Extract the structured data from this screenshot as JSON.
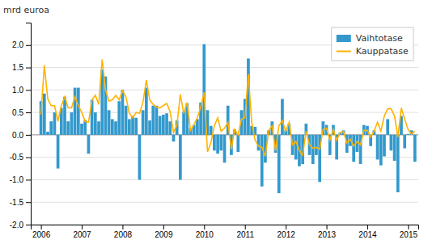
{
  "chart_data": {
    "type": "bar",
    "ylabel": "mrd euroa",
    "x": [
      2006,
      2006.083333,
      2006.166667,
      2006.25,
      2006.333333,
      2006.416667,
      2006.5,
      2006.583333,
      2006.666667,
      2006.75,
      2006.833333,
      2006.916667,
      2007,
      2007.083333,
      2007.166667,
      2007.25,
      2007.333333,
      2007.416667,
      2007.5,
      2007.583333,
      2007.666667,
      2007.75,
      2007.833333,
      2007.916667,
      2008,
      2008.083333,
      2008.166667,
      2008.25,
      2008.333333,
      2008.416667,
      2008.5,
      2008.583333,
      2008.666667,
      2008.75,
      2008.833333,
      2008.916667,
      2009,
      2009.083333,
      2009.166667,
      2009.25,
      2009.333333,
      2009.416667,
      2009.5,
      2009.583333,
      2009.666667,
      2009.75,
      2009.833333,
      2009.916667,
      2010,
      2010.083333,
      2010.166667,
      2010.25,
      2010.333333,
      2010.416667,
      2010.5,
      2010.583333,
      2010.666667,
      2010.75,
      2010.833333,
      2010.916667,
      2011,
      2011.083333,
      2011.166667,
      2011.25,
      2011.333333,
      2011.416667,
      2011.5,
      2011.583333,
      2011.666667,
      2011.75,
      2011.833333,
      2011.916667,
      2012,
      2012.083333,
      2012.166667,
      2012.25,
      2012.333333,
      2012.416667,
      2012.5,
      2012.583333,
      2012.666667,
      2012.75,
      2012.833333,
      2012.916667,
      2013,
      2013.083333,
      2013.166667,
      2013.25,
      2013.333333,
      2013.416667,
      2013.5,
      2013.583333,
      2013.666667,
      2013.75,
      2013.833333,
      2013.916667,
      2014,
      2014.083333,
      2014.166667,
      2014.25,
      2014.333333,
      2014.416667,
      2014.5,
      2014.583333,
      2014.666667,
      2014.75,
      2014.833333,
      2014.916667,
      2015,
      2015.083333,
      2015.166667
    ],
    "xlim": [
      2005.75,
      2015.25
    ],
    "xticks": [
      2006,
      2007,
      2008,
      2009,
      2010,
      2011,
      2012,
      2013,
      2014,
      2015
    ],
    "ylim": [
      -2.0,
      2.5
    ],
    "yticks": [
      {
        "value": -2.0,
        "label": "-2.0"
      },
      {
        "value": -1.5,
        "label": "-1.5"
      },
      {
        "value": -1.0,
        "label": "-1.0"
      },
      {
        "value": -0.5,
        "label": "-0.5"
      },
      {
        "value": 0.0,
        "label": "0.0"
      },
      {
        "value": 0.5,
        "label": "0.5"
      },
      {
        "value": 1.0,
        "label": "1.0"
      },
      {
        "value": 1.5,
        "label": "1.5"
      },
      {
        "value": 2.0,
        "label": "2.0"
      }
    ],
    "grid": true,
    "legend": "upper right",
    "series": [
      {
        "name": "Vaihtotase",
        "type": "bar",
        "color": "#3399CC",
        "values": [
          0.75,
          0.92,
          0.07,
          0.3,
          0.5,
          -0.75,
          0.6,
          0.85,
          0.3,
          0.5,
          1.05,
          1.05,
          0.25,
          0.33,
          -0.42,
          0.78,
          0.5,
          0.3,
          1.45,
          1.3,
          0.55,
          0.35,
          0.3,
          0.75,
          1.0,
          0.65,
          0.35,
          0.42,
          0.38,
          -1.0,
          0.55,
          1.05,
          0.32,
          0.65,
          0.65,
          0.42,
          0.45,
          0.48,
          0.3,
          -0.15,
          0.32,
          -1.0,
          0.52,
          0.7,
          0.15,
          0.22,
          0.35,
          0.72,
          2.02,
          0.55,
          0.2,
          -0.35,
          -0.42,
          -0.35,
          -0.62,
          0.65,
          -0.45,
          0.12,
          -0.38,
          0.55,
          0.8,
          1.7,
          0.2,
          0.18,
          -0.35,
          -1.15,
          -0.62,
          0.1,
          0.3,
          -0.4,
          -1.3,
          0.8,
          0.1,
          0.25,
          -0.45,
          -0.55,
          -0.7,
          -0.65,
          0.25,
          -0.45,
          -0.65,
          -0.45,
          -1.05,
          0.3,
          0.22,
          -0.45,
          0.22,
          -0.55,
          0.05,
          0.1,
          -0.4,
          -0.25,
          -0.6,
          -0.38,
          -0.65,
          0.22,
          0.2,
          -0.25,
          0.1,
          -0.55,
          -0.68,
          -0.48,
          0.35,
          -0.35,
          -0.58,
          -1.28,
          0.42,
          -0.3,
          0.02,
          0.1,
          -0.6
        ]
      },
      {
        "name": "Kauppatase",
        "type": "line",
        "color": "#FFB300",
        "values": [
          0.45,
          1.55,
          0.8,
          0.65,
          0.65,
          0.3,
          0.65,
          0.85,
          0.6,
          0.6,
          0.85,
          0.65,
          0.5,
          0.3,
          0.28,
          0.78,
          0.88,
          0.68,
          1.68,
          1.0,
          0.75,
          0.78,
          0.88,
          0.78,
          0.98,
          0.85,
          0.48,
          0.38,
          0.5,
          0.48,
          0.72,
          1.22,
          0.78,
          0.68,
          0.62,
          0.6,
          0.65,
          0.7,
          0.52,
          0.05,
          0.22,
          0.9,
          0.48,
          0.72,
          0.1,
          0.22,
          0.38,
          0.62,
          0.95,
          -0.38,
          -0.18,
          0.2,
          0.38,
          0.08,
          0.15,
          0.28,
          -0.32,
          0.12,
          0.0,
          0.35,
          0.38,
          1.35,
          0.28,
          -0.12,
          -0.25,
          -0.28,
          -0.48,
          0.1,
          0.2,
          -0.35,
          0.2,
          0.32,
          0.08,
          0.28,
          -0.22,
          -0.15,
          -0.35,
          -0.45,
          0.08,
          -0.22,
          -0.3,
          -0.28,
          -0.32,
          0.12,
          0.15,
          -0.12,
          0.12,
          -0.12,
          0.05,
          0.08,
          -0.18,
          -0.1,
          -0.25,
          -0.15,
          -0.22,
          0.1,
          0.1,
          -0.05,
          0.08,
          0.28,
          0.08,
          0.42,
          0.58,
          0.58,
          0.42,
          -0.05,
          0.6,
          0.35,
          0.12,
          0.02,
          0.08
        ]
      }
    ]
  }
}
